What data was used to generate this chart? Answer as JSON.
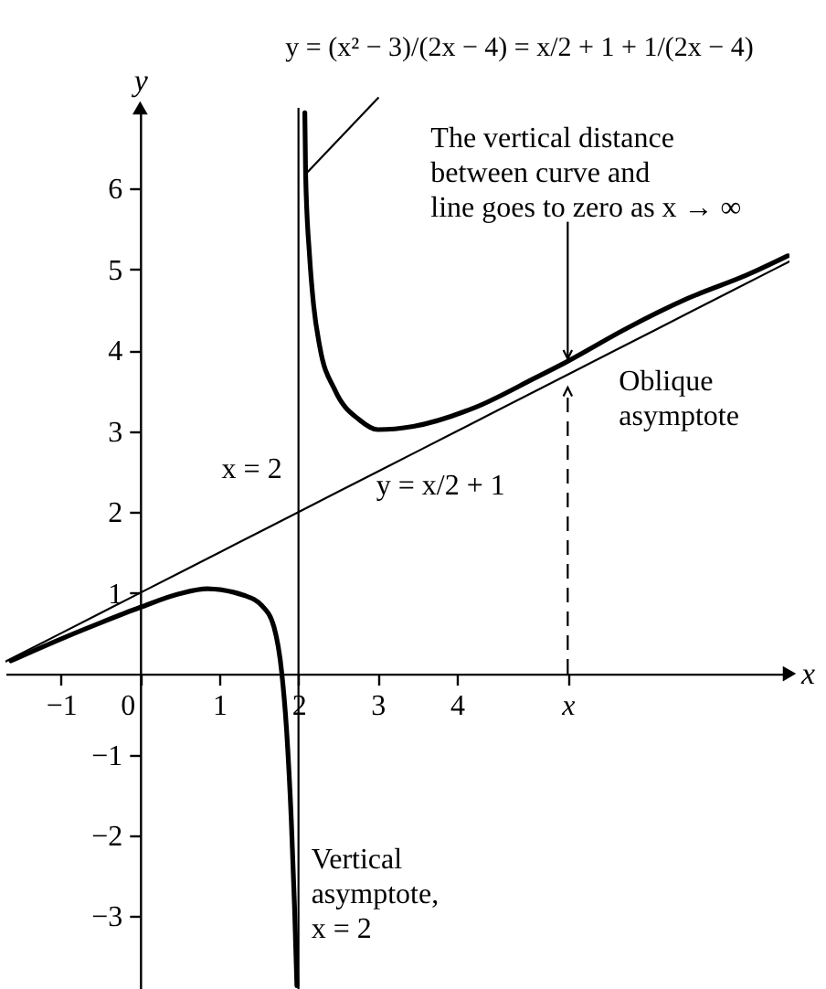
{
  "chart_data": {
    "type": "line",
    "xlabel": "x",
    "ylabel": "y",
    "xlim": [
      -1.7,
      8.2
    ],
    "ylim": [
      -3.9,
      7.0
    ],
    "xticks": [
      -1,
      0,
      1,
      2,
      3,
      4,
      {
        "value": 5.4,
        "label": "x"
      }
    ],
    "yticks": [
      -3,
      -2,
      -1,
      1,
      2,
      3,
      4,
      5,
      6
    ],
    "series": [
      {
        "color": "#000000",
        "x": [
          -1.63,
          -1.0,
          -0.5,
          0,
          0.5,
          0.85,
          1.31,
          1.54,
          1.69,
          1.79,
          1.85,
          1.91,
          1.95,
          1.98,
          2.0,
          2.08,
          2.09,
          2.14,
          2.19,
          2.27,
          2.46,
          2.77,
          3.0,
          3.45,
          4.22,
          4.99,
          5.37,
          6.14,
          6.91,
          7.68,
          8.18
        ],
        "values": [
          0.16,
          0.43,
          0.63,
          0.82,
          0.99,
          1.05,
          0.97,
          0.84,
          0.58,
          0.0,
          -0.7,
          -1.83,
          -2.88,
          -3.86,
          null,
          6.94,
          6.18,
          5.17,
          4.57,
          4.04,
          3.51,
          3.14,
          3.02,
          3.06,
          3.29,
          3.66,
          3.85,
          4.27,
          4.64,
          4.94,
          5.17
        ]
      },
      {
        "name": "y = x/2 + 1",
        "color": "#000000",
        "x": [
          -1.7,
          -1,
          0,
          1,
          2,
          3,
          4,
          5,
          6,
          7,
          8,
          8.2
        ],
        "values": [
          0.15,
          0.5,
          1.0,
          1.5,
          2.0,
          2.5,
          3.0,
          3.5,
          4.0,
          4.5,
          5.0,
          5.1
        ]
      },
      {
        "color": "#000000",
        "line_style": "dashed",
        "x": [
          5.4,
          5.4
        ],
        "values": [
          0,
          3.54
        ]
      }
    ],
    "ref_lines": [
      {
        "axis": "x",
        "value": 2,
        "label": "x = 2",
        "color": "#000000"
      }
    ],
    "annotations": [
      {
        "text": "y = (x² − 3)/(2x − 4) = x/2 + 1 + 1/(2x − 4)",
        "x": 2.09,
        "y": 6.18
      },
      {
        "text": "The vertical distance\nbetween curve and\nline goes to zero as x → ∞",
        "x": 5.4,
        "y": 3.85
      },
      {
        "text": "Oblique\nasymptote",
        "x": 6.0,
        "y": 4.0
      },
      {
        "text": "Vertical\nasymptote,\nx = 2",
        "x": 2,
        "y": -2.3
      }
    ]
  }
}
